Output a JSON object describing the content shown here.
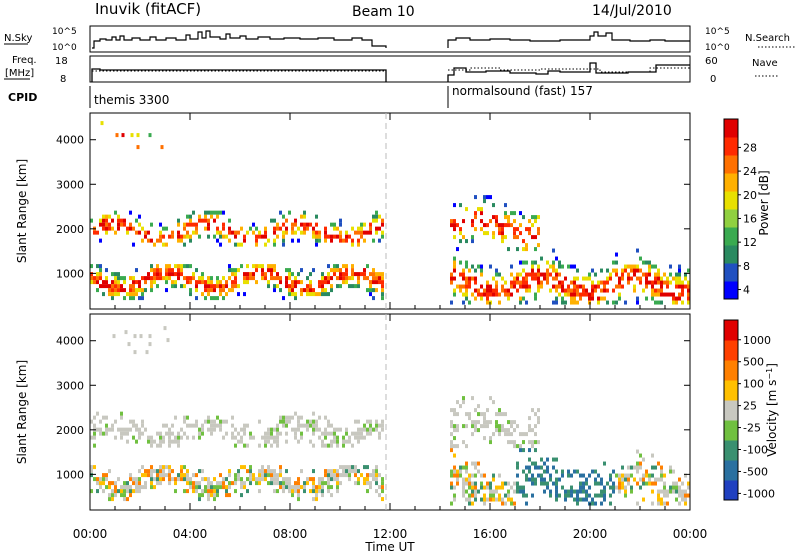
{
  "header": {
    "station": "Inuvik (fitACF)",
    "beam": "Beam 10",
    "date": "14/Jul/2010"
  },
  "status_panels": {
    "nsky_label": "N.Sky",
    "nsky_ticks": [
      "10^5",
      "10^0"
    ],
    "nsearch_label": "N.Search",
    "nsearch_ticks": [
      "10^5",
      "10^0"
    ],
    "freq_label": "Freq.",
    "freq_unit": "[MHz]",
    "freq_ticks": [
      "18",
      "8"
    ],
    "nave_label": "Nave",
    "nave_ticks": [
      "60",
      "0"
    ],
    "cpid_label": "CPID",
    "cpid_segments": [
      {
        "label": "themis 3300"
      },
      {
        "label": "normalsound (fast) 157"
      }
    ]
  },
  "chart_data": [
    {
      "type": "heatmap",
      "name": "power",
      "ylabel": "Slant Range [km]",
      "y_ticks": [
        "4000",
        "3000",
        "2000",
        "1000"
      ],
      "y_values": [
        4000,
        3000,
        2000,
        1000
      ],
      "ylim": [
        200,
        4600
      ],
      "xlim_hours": [
        0,
        24
      ],
      "colorbar_label": "Power [dB]",
      "colorbar_ticks": [
        "28",
        "24",
        "20",
        "16",
        "12",
        "8",
        "4"
      ],
      "colorbar_colors": [
        "#0000ff",
        "#2050c0",
        "#2a8a60",
        "#3aaa50",
        "#90d040",
        "#e8e000",
        "#ffb000",
        "#ff7000",
        "#ff2a00",
        "#e00000"
      ]
    },
    {
      "type": "heatmap",
      "name": "velocity",
      "ylabel": "Slant Range [km]",
      "y_ticks": [
        "4000",
        "3000",
        "2000",
        "1000"
      ],
      "y_values": [
        4000,
        3000,
        2000,
        1000
      ],
      "ylim": [
        200,
        4600
      ],
      "xlim_hours": [
        0,
        24
      ],
      "colorbar_label": "Velocity [m s^-1]",
      "colorbar_ticks": [
        "1000",
        "500",
        "100",
        "25",
        "-25",
        "-100",
        "-500",
        "-1000"
      ],
      "colorbar_colors": [
        "#2040c0",
        "#2a70a0",
        "#3a9070",
        "#70c040",
        "#c8c8c0",
        "#ffc000",
        "#ff8000",
        "#ff4000",
        "#e00000"
      ]
    }
  ],
  "x_axis": {
    "label": "Time UT",
    "ticks": [
      "00:00",
      "04:00",
      "08:00",
      "12:00",
      "16:00",
      "20:00",
      "00:00"
    ],
    "tick_hours": [
      0,
      4,
      8,
      12,
      16,
      20,
      24
    ],
    "data_gap_hours": [
      11.7,
      14.3
    ]
  }
}
